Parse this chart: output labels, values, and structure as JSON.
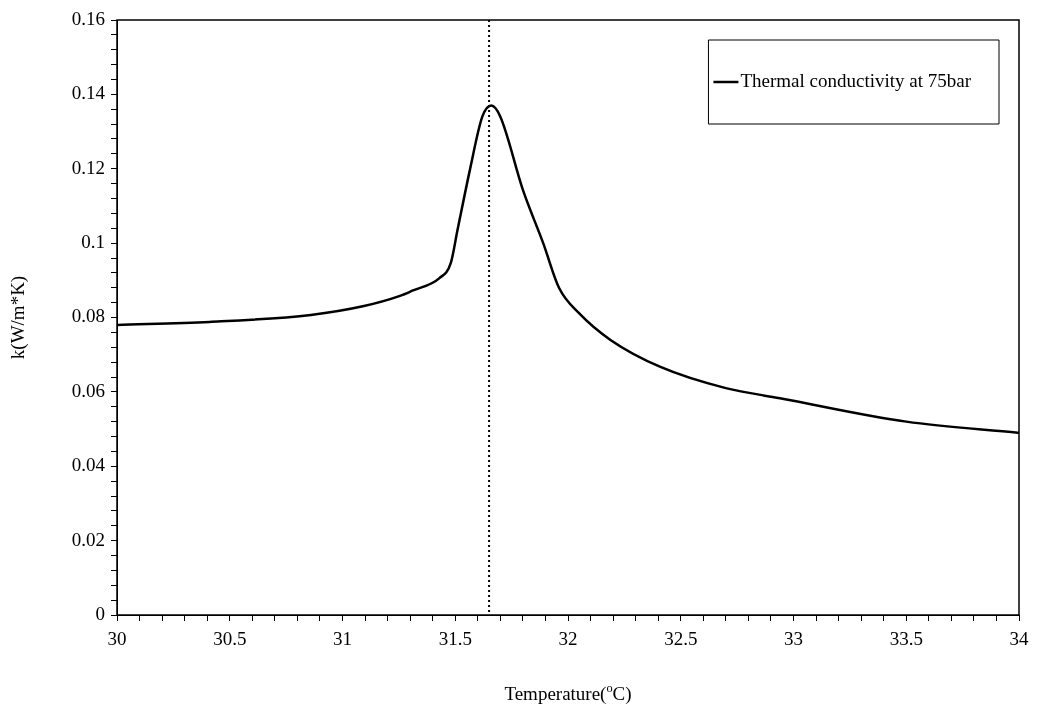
{
  "chart_data": {
    "type": "line",
    "xlabel": "Temperature($^{o}$C)",
    "ylabel": "k(W/m*K)",
    "x": [
      30,
      30.41,
      30.86,
      31.09,
      31.255,
      31.31,
      31.43,
      31.48,
      31.51,
      31.565,
      31.62,
      31.66,
      31.7,
      31.8,
      31.89,
      31.96,
      32.05,
      32.19,
      32.41,
      32.7,
      32.94,
      33.5,
      34
    ],
    "series": [
      {
        "name": "Thermal conductivity at 75bar",
        "color": "#000000",
        "values": [
          0.078,
          0.0788,
          0.0807,
          0.083,
          0.0858,
          0.0872,
          0.0906,
          0.0946,
          0.1035,
          0.1197,
          0.134,
          0.137,
          0.134,
          0.1143,
          0.1,
          0.088,
          0.0811,
          0.0739,
          0.0667,
          0.061,
          0.0583,
          0.052,
          0.049
        ]
      }
    ],
    "xlim": [
      30,
      34
    ],
    "xticks": [
      30,
      {
        "value": 30.1,
        "label": null
      },
      {
        "value": 30.2,
        "label": null
      },
      {
        "value": 30.3,
        "label": null
      },
      {
        "value": 30.4,
        "label": null
      },
      30.5,
      {
        "value": 30.6,
        "label": null
      },
      {
        "value": 30.7,
        "label": null
      },
      {
        "value": 30.8,
        "label": null
      },
      {
        "value": 30.9,
        "label": null
      },
      31,
      {
        "value": 31.1,
        "label": null
      },
      {
        "value": 31.2,
        "label": null
      },
      {
        "value": 31.3,
        "label": null
      },
      {
        "value": 31.4,
        "label": null
      },
      31.5,
      {
        "value": 31.6,
        "label": null
      },
      {
        "value": 31.7,
        "label": null
      },
      {
        "value": 31.8,
        "label": null
      },
      {
        "value": 31.9,
        "label": null
      },
      32,
      {
        "value": 32.1,
        "label": null
      },
      {
        "value": 32.2,
        "label": null
      },
      {
        "value": 32.3,
        "label": null
      },
      {
        "value": 32.4,
        "label": null
      },
      32.5,
      {
        "value": 32.6,
        "label": null
      },
      {
        "value": 32.7,
        "label": null
      },
      {
        "value": 32.8,
        "label": null
      },
      {
        "value": 32.9,
        "label": null
      },
      33,
      {
        "value": 33.1,
        "label": null
      },
      {
        "value": 33.2,
        "label": null
      },
      {
        "value": 33.3,
        "label": null
      },
      {
        "value": 33.4,
        "label": null
      },
      33.5,
      {
        "value": 33.6,
        "label": null
      },
      {
        "value": 33.7,
        "label": null
      },
      {
        "value": 33.8,
        "label": null
      },
      {
        "value": 33.9,
        "label": null
      },
      34
    ],
    "ylim": [
      0,
      0.16
    ],
    "yticks": [
      0,
      {
        "value": 0.004,
        "label": null
      },
      {
        "value": 0.008,
        "label": null
      },
      {
        "value": 0.012,
        "label": null
      },
      {
        "value": 0.016,
        "label": null
      },
      0.02,
      {
        "value": 0.024,
        "label": null
      },
      {
        "value": 0.028,
        "label": null
      },
      {
        "value": 0.032,
        "label": null
      },
      {
        "value": 0.036,
        "label": null
      },
      0.04,
      {
        "value": 0.044,
        "label": null
      },
      {
        "value": 0.048,
        "label": null
      },
      {
        "value": 0.052,
        "label": null
      },
      {
        "value": 0.056,
        "label": null
      },
      0.06,
      {
        "value": 0.064,
        "label": null
      },
      {
        "value": 0.068,
        "label": null
      },
      {
        "value": 0.072,
        "label": null
      },
      {
        "value": 0.076,
        "label": null
      },
      0.08,
      {
        "value": 0.084,
        "label": null
      },
      {
        "value": 0.088,
        "label": null
      },
      {
        "value": 0.092,
        "label": null
      },
      {
        "value": 0.096,
        "label": null
      },
      0.1,
      {
        "value": 0.104,
        "label": null
      },
      {
        "value": 0.108,
        "label": null
      },
      {
        "value": 0.112,
        "label": null
      },
      {
        "value": 0.116,
        "label": null
      },
      0.12,
      {
        "value": 0.124,
        "label": null
      },
      {
        "value": 0.128,
        "label": null
      },
      {
        "value": 0.132,
        "label": null
      },
      {
        "value": 0.136,
        "label": null
      },
      0.14,
      {
        "value": 0.144,
        "label": null
      },
      {
        "value": 0.148,
        "label": null
      },
      {
        "value": 0.152,
        "label": null
      },
      {
        "value": 0.156,
        "label": null
      },
      0.16
    ],
    "ref_lines": [
      {
        "axis": "x",
        "value": 31.65,
        "color": "#000000",
        "line_style": "dotted"
      }
    ],
    "grid": false,
    "legend": "top right",
    "marker": "none",
    "line_style": "solid"
  }
}
